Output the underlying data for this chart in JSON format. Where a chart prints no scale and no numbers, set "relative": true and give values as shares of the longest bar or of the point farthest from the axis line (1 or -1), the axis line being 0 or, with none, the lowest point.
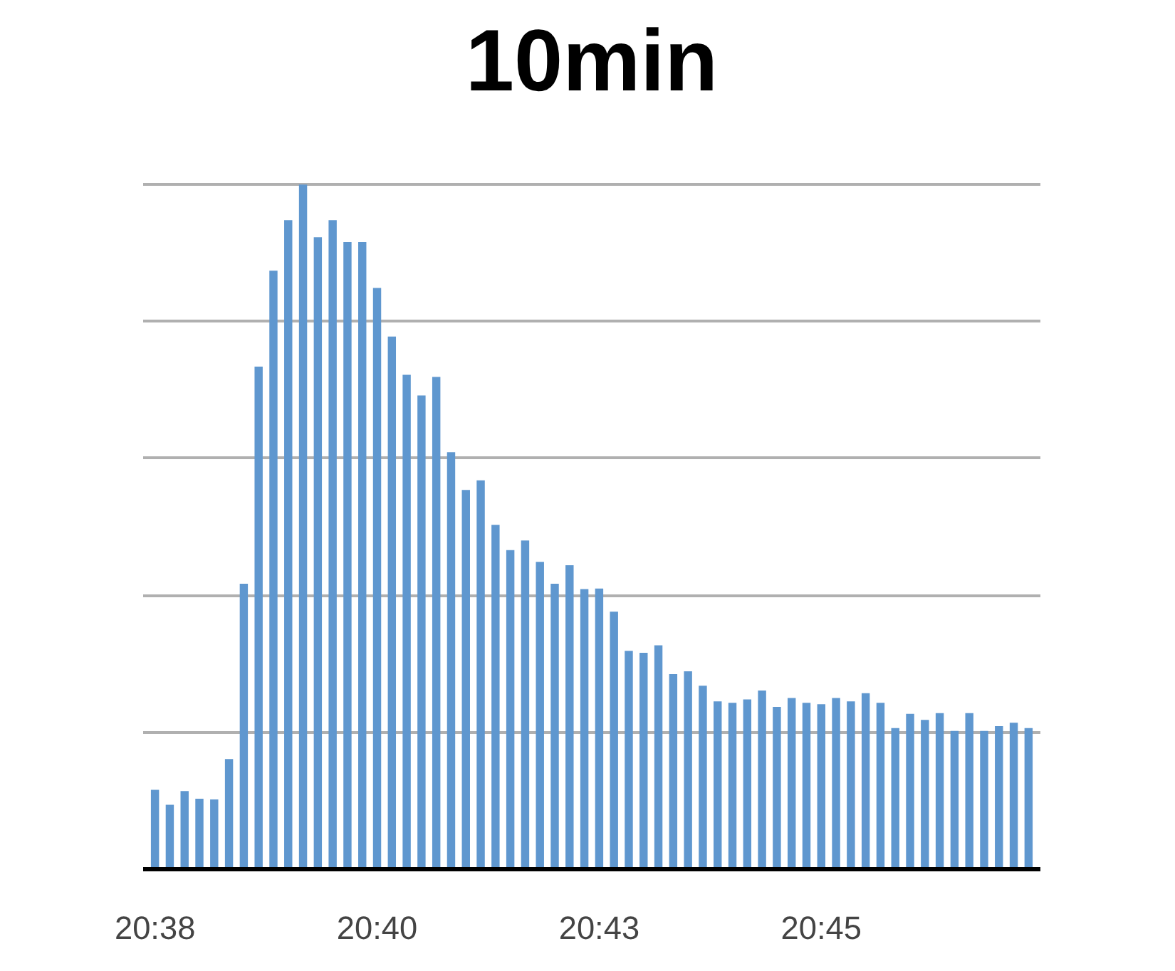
{
  "chart_data": {
    "type": "bar",
    "title": "10min",
    "relative": true,
    "grid": "y",
    "categories": [
      "20:38",
      null,
      null,
      null,
      null,
      null,
      null,
      null,
      null,
      null,
      null,
      null,
      null,
      null,
      null,
      "20:40",
      null,
      null,
      null,
      null,
      null,
      null,
      null,
      null,
      null,
      null,
      null,
      null,
      null,
      null,
      "20:43",
      null,
      null,
      null,
      null,
      null,
      null,
      null,
      null,
      null,
      null,
      null,
      null,
      null,
      null,
      "20:45",
      null,
      null,
      null,
      null,
      null,
      null,
      null,
      null,
      null,
      null,
      null,
      null,
      null,
      null
    ],
    "color": "#5f97cf",
    "values": [
      0.116,
      0.094,
      0.114,
      0.103,
      0.102,
      0.161,
      0.417,
      0.734,
      0.874,
      0.948,
      1,
      0.923,
      0.948,
      0.916,
      0.916,
      0.849,
      0.778,
      0.722,
      0.692,
      0.719,
      0.609,
      0.554,
      0.568,
      0.503,
      0.466,
      0.48,
      0.449,
      0.417,
      0.444,
      0.409,
      0.41,
      0.376,
      0.319,
      0.316,
      0.327,
      0.285,
      0.289,
      0.268,
      0.245,
      0.243,
      0.248,
      0.261,
      0.237,
      0.25,
      0.243,
      0.241,
      0.25,
      0.245,
      0.257,
      0.243,
      0.206,
      0.227,
      0.218,
      0.228,
      0.202,
      0.228,
      0.202,
      0.209,
      0.214,
      0.206
    ]
  }
}
